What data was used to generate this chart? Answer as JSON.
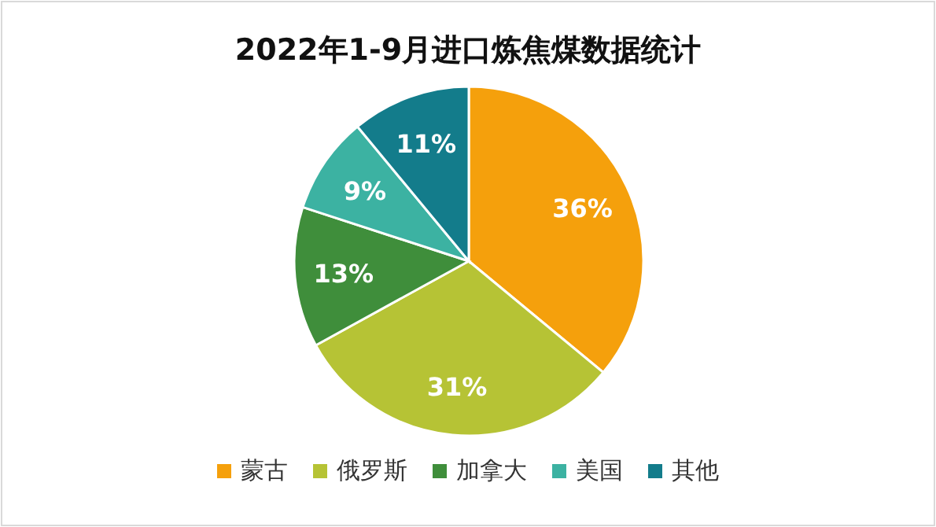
{
  "chart_data": {
    "type": "pie",
    "title": "2022年1-9月进口炼焦煤数据统计",
    "categories": [
      "蒙古",
      "俄罗斯",
      "加拿大",
      "美国",
      "其他"
    ],
    "values": [
      36,
      31,
      13,
      9,
      11
    ],
    "colors": [
      "#f5a00c",
      "#b6c335",
      "#3f8e3b",
      "#3cb2a2",
      "#137c8b"
    ],
    "value_labels": [
      "36%",
      "31%",
      "13%",
      "9%",
      "11%"
    ],
    "legend": "bottom"
  }
}
